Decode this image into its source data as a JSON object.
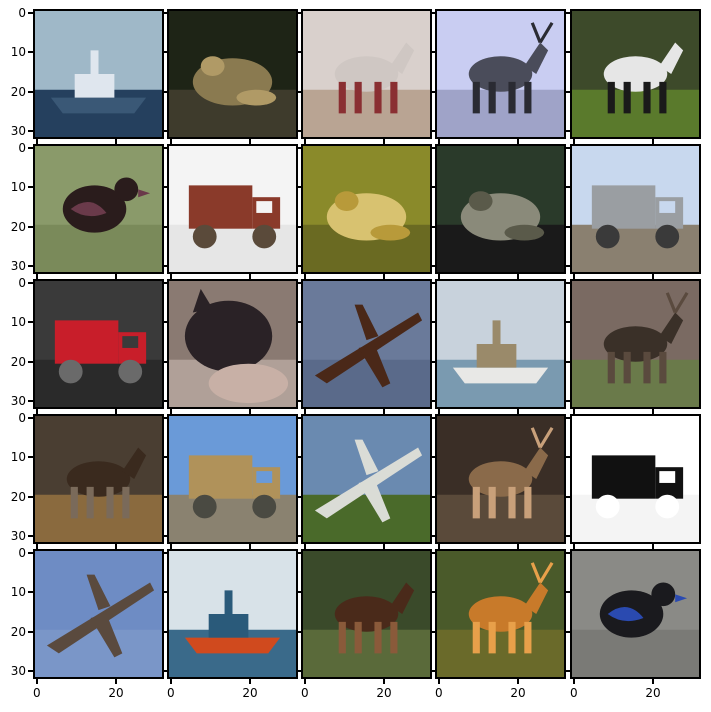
{
  "axes": {
    "y_tick_labels": [
      "0",
      "10",
      "20",
      "30"
    ],
    "x_tick_labels": [
      "0",
      "20"
    ]
  },
  "tiles": [
    {
      "subject": "boat",
      "colors": {
        "sky": "#9fb8c8",
        "main": "#3a5876",
        "accent": "#dfe6ee",
        "ground": "#25405e"
      }
    },
    {
      "subject": "frog",
      "colors": {
        "sky": "#1e2416",
        "main": "#8a7a50",
        "accent": "#b09a66",
        "ground": "#3e3b2c"
      }
    },
    {
      "subject": "horse",
      "colors": {
        "sky": "#d9d0cc",
        "main": "#cfc7c3",
        "accent": "#8a2f32",
        "ground": "#b9a493"
      }
    },
    {
      "subject": "deer",
      "colors": {
        "sky": "#c9cdf2",
        "main": "#4a4c5a",
        "accent": "#2a2b33",
        "ground": "#9fa3c8"
      }
    },
    {
      "subject": "dog",
      "colors": {
        "sky": "#3d4a2a",
        "main": "#e6e6e6",
        "accent": "#1a1a1a",
        "ground": "#5a7a2c"
      }
    },
    {
      "subject": "bird",
      "colors": {
        "sky": "#8a9a6a",
        "main": "#2a1c1c",
        "accent": "#6a3a4a",
        "ground": "#7a8a5a"
      }
    },
    {
      "subject": "truck",
      "colors": {
        "sky": "#f4f4f4",
        "main": "#8a3a2a",
        "accent": "#5a4a3a",
        "ground": "#e6e6e6"
      }
    },
    {
      "subject": "frog",
      "colors": {
        "sky": "#8a8a2a",
        "main": "#d8c270",
        "accent": "#b89a3a",
        "ground": "#6a6a22"
      }
    },
    {
      "subject": "frog",
      "colors": {
        "sky": "#2a3a2a",
        "main": "#8a8a7a",
        "accent": "#5a5a4a",
        "ground": "#1a1a1a"
      }
    },
    {
      "subject": "truck",
      "colors": {
        "sky": "#c8d8ee",
        "main": "#9a9ea2",
        "accent": "#3a3a3a",
        "ground": "#8a8070"
      }
    },
    {
      "subject": "automobile",
      "colors": {
        "sky": "#3a3a3a",
        "main": "#c81e2a",
        "accent": "#6a6a6a",
        "ground": "#2a2a2a"
      }
    },
    {
      "subject": "cat",
      "colors": {
        "sky": "#8a7a72",
        "main": "#2a2226",
        "accent": "#c8b0a6",
        "ground": "#b0a098"
      }
    },
    {
      "subject": "airplane",
      "colors": {
        "sky": "#6a7a9a",
        "main": "#4a2818",
        "accent": "#8a4a2a",
        "ground": "#5a6a8a"
      }
    },
    {
      "subject": "ship",
      "colors": {
        "sky": "#c8d2dc",
        "main": "#e8e8e6",
        "accent": "#9a8a6a",
        "ground": "#7a9ab0"
      }
    },
    {
      "subject": "deer",
      "colors": {
        "sky": "#7a6a62",
        "main": "#3a3028",
        "accent": "#5a4a3e",
        "ground": "#6a7a4a"
      }
    },
    {
      "subject": "horse",
      "colors": {
        "sky": "#4a3e32",
        "main": "#3a2a1e",
        "accent": "#7a6a5a",
        "ground": "#8a6a3e"
      }
    },
    {
      "subject": "truck",
      "colors": {
        "sky": "#6a9ad8",
        "main": "#b0925a",
        "accent": "#4a4a42",
        "ground": "#8a8270"
      }
    },
    {
      "subject": "airplane",
      "colors": {
        "sky": "#6a8ab0",
        "main": "#dadcd6",
        "accent": "#4a5a3a",
        "ground": "#4a6a2a"
      }
    },
    {
      "subject": "deer",
      "colors": {
        "sky": "#3a2e26",
        "main": "#8a6a4a",
        "accent": "#c8a07a",
        "ground": "#5a4a3a"
      }
    },
    {
      "subject": "truck",
      "colors": {
        "sky": "#ffffff",
        "main": "#111111",
        "accent": "#ffffff",
        "ground": "#f4f4f4"
      }
    },
    {
      "subject": "airplane",
      "colors": {
        "sky": "#6e8cc4",
        "main": "#5a4a3e",
        "accent": "#8aa2cc",
        "ground": "#7a96c8"
      }
    },
    {
      "subject": "ship",
      "colors": {
        "sky": "#d8e2e8",
        "main": "#d04a1e",
        "accent": "#2a5a7a",
        "ground": "#3a6a8a"
      }
    },
    {
      "subject": "dog",
      "colors": {
        "sky": "#3a4a2a",
        "main": "#4a2a1a",
        "accent": "#8a5a3a",
        "ground": "#5a6a3a"
      }
    },
    {
      "subject": "deer",
      "colors": {
        "sky": "#4a5a2a",
        "main": "#c87a2a",
        "accent": "#e8a04a",
        "ground": "#6a6a2a"
      }
    },
    {
      "subject": "bird",
      "colors": {
        "sky": "#8a8a86",
        "main": "#1a1a1e",
        "accent": "#2a4ab0",
        "ground": "#7a7a76"
      }
    }
  ]
}
